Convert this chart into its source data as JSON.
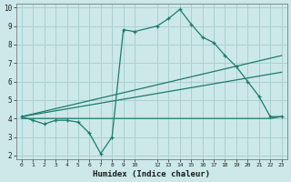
{
  "xlabel": "Humidex (Indice chaleur)",
  "line_color": "#1b7b6e",
  "bg_color": "#cce8e8",
  "grid_color": "#aad0d0",
  "line1_x": [
    0,
    1,
    2,
    3,
    4,
    5,
    6,
    7,
    8,
    9,
    10,
    12,
    13,
    14,
    15,
    16,
    17,
    18,
    19,
    20,
    21,
    22,
    23
  ],
  "line1_y": [
    4.1,
    3.9,
    3.7,
    3.9,
    3.9,
    3.8,
    3.2,
    2.1,
    3.0,
    8.8,
    8.7,
    9.0,
    9.4,
    9.9,
    9.1,
    8.4,
    8.1,
    7.4,
    6.8,
    6.0,
    5.2,
    4.1,
    4.1
  ],
  "line2_x": [
    0,
    23
  ],
  "line2_y": [
    4.1,
    7.4
  ],
  "line3_x": [
    0,
    23
  ],
  "line3_y": [
    4.1,
    6.5
  ],
  "line4_x": [
    0,
    22,
    23
  ],
  "line4_y": [
    4.0,
    4.0,
    4.1
  ],
  "xmin": -0.5,
  "xmax": 23.5,
  "ymin": 1.8,
  "ymax": 10.2,
  "xtick_positions": [
    0,
    1,
    2,
    3,
    4,
    5,
    6,
    7,
    8,
    9,
    10,
    12,
    13,
    14,
    15,
    16,
    17,
    18,
    19,
    20,
    21,
    22,
    23
  ],
  "xtick_labels": [
    "0",
    "1",
    "2",
    "3",
    "4",
    "5",
    "6",
    "7",
    "8",
    "9",
    "10",
    "12",
    "13",
    "14",
    "15",
    "16",
    "17",
    "18",
    "19",
    "20",
    "21",
    "22",
    "23"
  ],
  "ytick_positions": [
    2,
    3,
    4,
    5,
    6,
    7,
    8,
    9,
    10
  ],
  "ytick_labels": [
    "2",
    "3",
    "4",
    "5",
    "6",
    "7",
    "8",
    "9",
    "10"
  ]
}
